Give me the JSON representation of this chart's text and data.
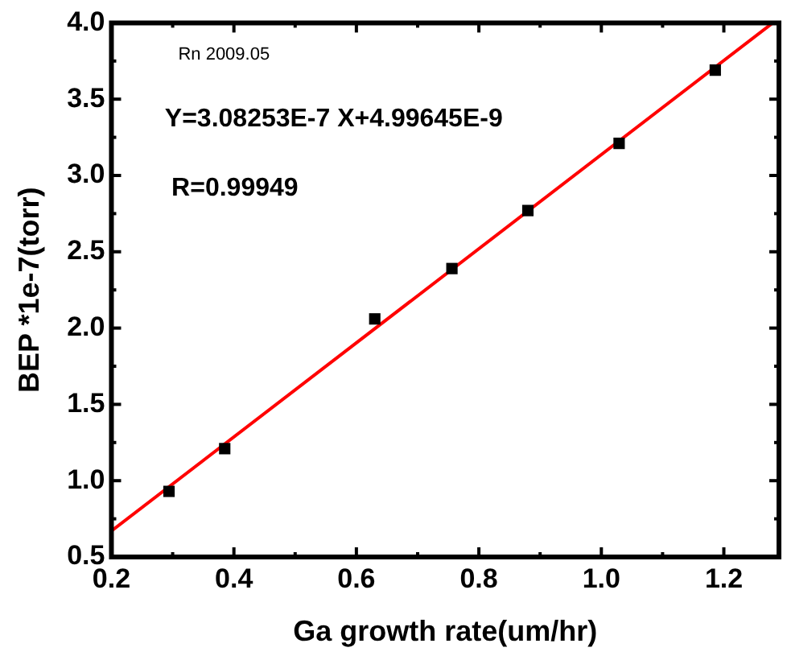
{
  "chart_data": {
    "type": "scatter",
    "xlabel": "Ga growth rate(um/hr)",
    "ylabel": "BEP *1e-7(torr)",
    "annotations": [
      "Rn 2009.05",
      "Y=3.08253E-7 X+4.99645E-9",
      "R=0.99949"
    ],
    "series": [
      {
        "color": "#000000",
        "marker": "square",
        "x": [
          0.294,
          0.385,
          0.63,
          0.756,
          0.88,
          1.029,
          1.186
        ],
        "values": [
          0.93,
          1.21,
          2.06,
          2.39,
          2.77,
          3.21,
          3.69
        ]
      },
      {
        "type": "line",
        "color": "#ff0000",
        "marker": "none",
        "x": [
          0.2,
          1.28
        ],
        "values": [
          0.67,
          4.0
        ]
      }
    ],
    "xlim": [
      0.2,
      1.29
    ],
    "xticks": [
      0.2,
      0.4,
      0.6,
      0.8,
      {
        "value": 1,
        "label": "1.0"
      },
      1.2
    ],
    "ylim": [
      0.5,
      4.0
    ],
    "yticks": [
      0.5,
      {
        "value": 1,
        "label": "1.0"
      },
      1.5,
      {
        "value": 2,
        "label": "2.0"
      },
      2.5,
      {
        "value": 3,
        "label": "3.0"
      },
      3.5,
      {
        "value": 4,
        "label": "4.0"
      }
    ],
    "grid": false,
    "legend": false,
    "line_style": "solid"
  }
}
